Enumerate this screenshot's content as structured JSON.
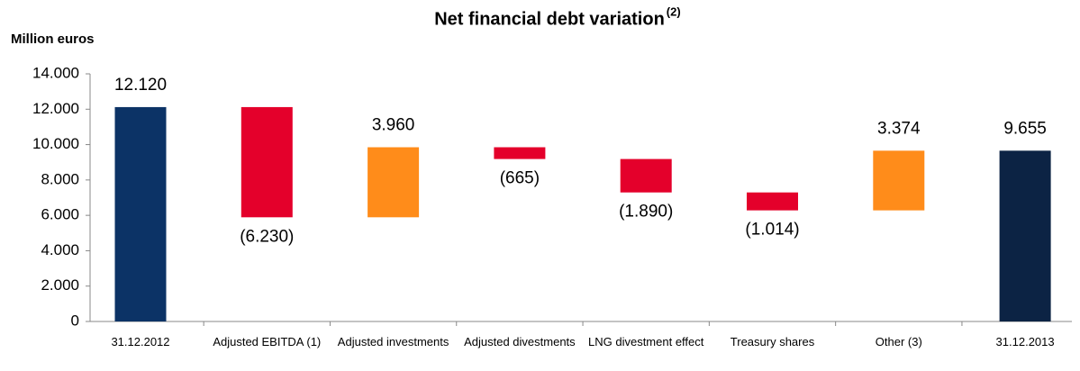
{
  "chart_data": {
    "type": "waterfall",
    "title": "Net financial debt variation",
    "title_note": "(2)",
    "y_label": "Million euros",
    "categories": [
      "31.12.2012",
      "Adjusted EBITDA (1)",
      "Adjusted investments",
      "Adjusted divestments",
      "LNG divestment effect",
      "Treasury shares",
      "Other (3)",
      "31.12.2013"
    ],
    "measure": [
      "total",
      "relative",
      "relative",
      "relative",
      "relative",
      "relative",
      "relative",
      "total"
    ],
    "values": [
      12120,
      -6230,
      3960,
      -665,
      -1890,
      -1014,
      3374,
      9655
    ],
    "value_labels": [
      "12.120",
      "(6.230)",
      "3.960",
      "(665)",
      "(1.890)",
      "(1.014)",
      "3.374",
      "9.655"
    ],
    "colors": [
      "#0c3366",
      "#e4002b",
      "#ff8c1a",
      "#e4002b",
      "#e4002b",
      "#e4002b",
      "#ff8c1a",
      "#0c2344"
    ],
    "ylim": [
      0,
      14000
    ],
    "yticks": [
      0,
      {
        "value": 2000,
        "label": "2.000"
      },
      {
        "value": 4000,
        "label": "4.000"
      },
      {
        "value": 6000,
        "label": "6.000"
      },
      {
        "value": 8000,
        "label": "8.000"
      },
      {
        "value": 10000,
        "label": "10.000"
      },
      {
        "value": 12000,
        "label": "12.000"
      },
      {
        "value": 14000,
        "label": "14.000"
      }
    ],
    "grid": false
  }
}
